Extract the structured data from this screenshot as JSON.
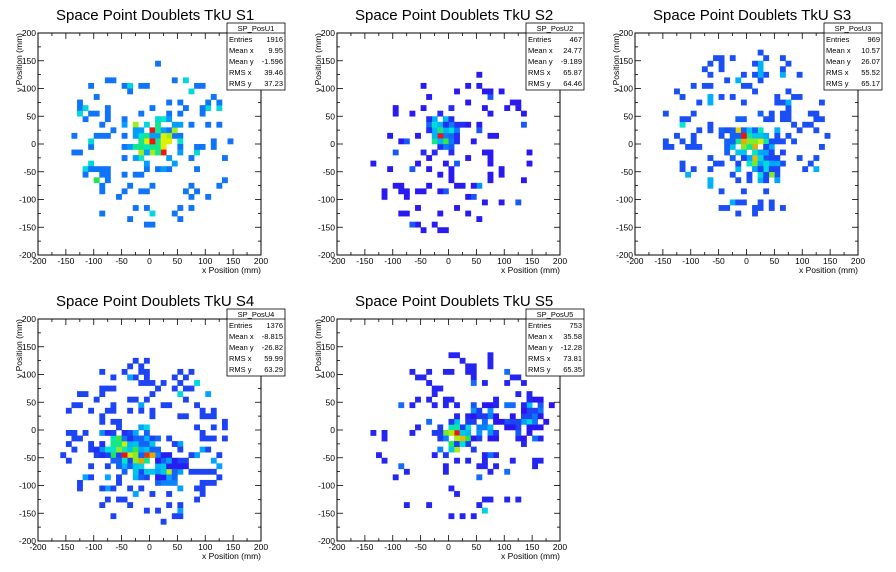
{
  "chart_data": [
    {
      "type": "heatmap",
      "name": "SP_PosU1",
      "title": "Space Point Doublets TkU S1",
      "xlabel": "x Position (mm)",
      "ylabel": "y Position (mm)",
      "xlim": [
        -200,
        200
      ],
      "ylim": [
        -200,
        200
      ],
      "xticks": [
        -200,
        -150,
        -100,
        -50,
        0,
        50,
        100,
        150,
        200
      ],
      "yticks": [
        -200,
        -150,
        -100,
        -50,
        0,
        50,
        100,
        150,
        200
      ],
      "stats": [
        {
          "label": "Entries",
          "value": "1916"
        },
        {
          "label": "Mean x",
          "value": "9.95"
        },
        {
          "label": "Mean y",
          "value": "-1.596"
        },
        {
          "label": "RMS x",
          "value": "39.46"
        },
        {
          "label": "RMS y",
          "value": "37.23"
        }
      ],
      "seed": 11,
      "sx": 30,
      "sy": 28,
      "hot": [
        [
          5,
          5,
          1.0,
          18
        ]
      ],
      "halo": 140,
      "hcx": 0,
      "hcy": 0,
      "hr": 150,
      "low_color": "#7000e8"
    },
    {
      "type": "heatmap",
      "name": "SP_PosU2",
      "title": "Space Point Doublets TkU S2",
      "xlabel": "x Position (mm)",
      "ylabel": "y Position (mm)",
      "xlim": [
        -200,
        200
      ],
      "ylim": [
        -200,
        200
      ],
      "xticks": [
        -200,
        -150,
        -100,
        -50,
        0,
        50,
        100,
        150,
        200
      ],
      "yticks": [
        -200,
        -150,
        -100,
        -50,
        0,
        50,
        100,
        150,
        200
      ],
      "stats": [
        {
          "label": "Entries",
          "value": "467"
        },
        {
          "label": "Mean x",
          "value": "24.77"
        },
        {
          "label": "Mean y",
          "value": "-9.189"
        },
        {
          "label": "RMS x",
          "value": "65.87"
        },
        {
          "label": "RMS y",
          "value": "64.46"
        }
      ],
      "seed": 23,
      "sx": 60,
      "sy": 60,
      "hot": [
        [
          -10,
          20,
          1.0,
          14
        ]
      ],
      "halo": 110,
      "hcx": 10,
      "hcy": -20,
      "hr": 150,
      "low_color": "#2a14f0"
    },
    {
      "type": "heatmap",
      "name": "SP_PosU3",
      "title": "Space Point Doublets TkU S3",
      "xlabel": "x Position (mm)",
      "ylabel": "y Position (mm)",
      "xticks": [
        -200,
        -150,
        -100,
        -50,
        0,
        50,
        100,
        150,
        200
      ],
      "yticks": [
        -200,
        -150,
        -100,
        -50,
        0,
        50,
        100,
        150,
        200
      ],
      "xlim": [
        -200,
        200
      ],
      "ylim": [
        -200,
        200
      ],
      "stats": [
        {
          "label": "Entries",
          "value": "969"
        },
        {
          "label": "Mean x",
          "value": "10.57"
        },
        {
          "label": "Mean y",
          "value": "26.07"
        },
        {
          "label": "RMS x",
          "value": "55.52"
        },
        {
          "label": "RMS y",
          "value": "65.17"
        }
      ],
      "seed": 37,
      "sx": 55,
      "sy": 60,
      "hot": [
        [
          0,
          5,
          0.9,
          18
        ],
        [
          30,
          -35,
          0.7,
          16
        ]
      ],
      "halo": 160,
      "hcx": 0,
      "hcy": 20,
      "hr": 150,
      "low_color": "#2a14f0"
    },
    {
      "type": "heatmap",
      "name": "SP_PosU4",
      "title": "Space Point Doublets TkU S4",
      "xlabel": "x Position (mm)",
      "ylabel": "y Position (mm)",
      "xlim": [
        -200,
        200
      ],
      "ylim": [
        -200,
        200
      ],
      "xticks": [
        -200,
        -150,
        -100,
        -50,
        0,
        50,
        100,
        150,
        200
      ],
      "yticks": [
        -200,
        -150,
        -100,
        -50,
        0,
        50,
        100,
        150,
        200
      ],
      "stats": [
        {
          "label": "Entries",
          "value": "1376"
        },
        {
          "label": "Mean x",
          "value": "-8.815"
        },
        {
          "label": "Mean y",
          "value": "-26.82"
        },
        {
          "label": "RMS x",
          "value": "59.99"
        },
        {
          "label": "RMS y",
          "value": "63.29"
        }
      ],
      "seed": 41,
      "sx": 50,
      "sy": 45,
      "hot": [
        [
          -20,
          -45,
          1.0,
          20
        ],
        [
          -60,
          -25,
          0.6,
          14
        ],
        [
          30,
          -70,
          0.5,
          14
        ]
      ],
      "halo": 200,
      "hcx": -5,
      "hcy": -20,
      "hr": 150,
      "low_color": "#7000e8"
    },
    {
      "type": "heatmap",
      "name": "SP_PosU5",
      "title": "Space Point Doublets TkU S5",
      "xlabel": "x Position (mm)",
      "ylabel": "y Position (mm)",
      "xlim": [
        -200,
        200
      ],
      "ylim": [
        -200,
        200
      ],
      "xticks": [
        -200,
        -150,
        -100,
        -50,
        0,
        50,
        100,
        150,
        200
      ],
      "yticks": [
        -200,
        -150,
        -100,
        -50,
        0,
        50,
        100,
        150,
        200
      ],
      "stats": [
        {
          "label": "Entries",
          "value": "753"
        },
        {
          "label": "Mean x",
          "value": "35.58"
        },
        {
          "label": "Mean y",
          "value": "-12.28"
        },
        {
          "label": "RMS x",
          "value": "73.81"
        },
        {
          "label": "RMS y",
          "value": "65.35"
        }
      ],
      "seed": 53,
      "sx": 70,
      "sy": 60,
      "hot": [
        [
          15,
          -10,
          1.0,
          14
        ],
        [
          140,
          20,
          0.55,
          16
        ],
        [
          60,
          10,
          0.5,
          18
        ]
      ],
      "halo": 130,
      "hcx": 20,
      "hcy": -10,
      "hr": 155,
      "low_color": "#2a14f0"
    }
  ]
}
